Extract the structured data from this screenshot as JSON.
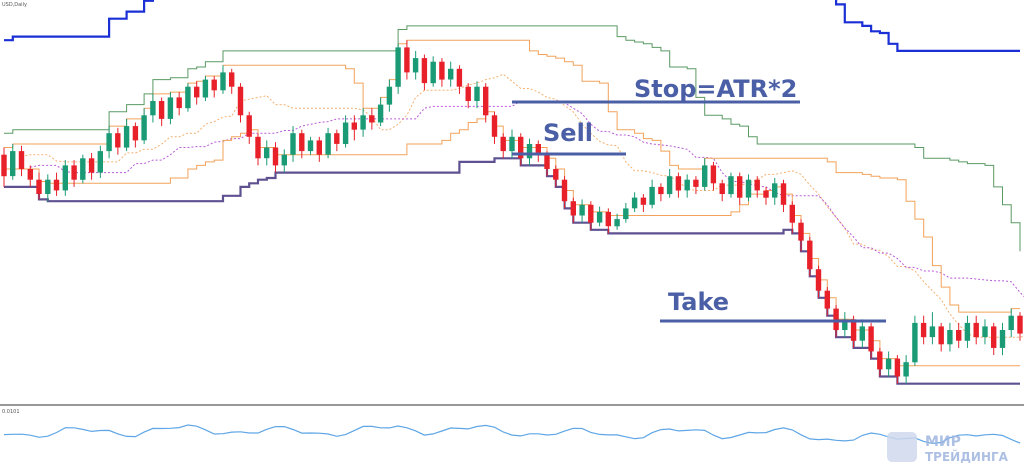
{
  "chart_data": {
    "type": "candlestick",
    "symbol_label": "USD,Daily",
    "oscillator_label": "0.0101",
    "annotations": {
      "stop": "Stop=ATR*2",
      "sell": "Sell",
      "take": "Take"
    },
    "watermark": {
      "line1": "МИР",
      "line2": "ТРЕЙДИНГА"
    },
    "colors": {
      "bull": "#1a9b76",
      "bear": "#e8202a",
      "lower_channel": "#5e5091",
      "upper_channel": "#1a2fd6",
      "orange_channel": "#f2a25a",
      "green_channel": "#5a9a63",
      "purple_dotted": "#b85ad8",
      "orange_dotted": "#f4b070",
      "annotation": "#4b5fa6",
      "oscillator": "#5fa6e6",
      "separator": "#777777"
    },
    "candles": [
      [
        58,
        46,
        40,
        62
      ],
      [
        46,
        60,
        44,
        64
      ],
      [
        60,
        50,
        46,
        63
      ],
      [
        50,
        44,
        40,
        52
      ],
      [
        44,
        36,
        33,
        48
      ],
      [
        36,
        44,
        32,
        47
      ],
      [
        44,
        38,
        35,
        48
      ],
      [
        38,
        52,
        35,
        55
      ],
      [
        52,
        44,
        40,
        55
      ],
      [
        44,
        56,
        42,
        58
      ],
      [
        56,
        48,
        44,
        59
      ],
      [
        48,
        60,
        45,
        63
      ],
      [
        60,
        70,
        56,
        74
      ],
      [
        70,
        62,
        58,
        73
      ],
      [
        62,
        74,
        60,
        78
      ],
      [
        74,
        66,
        62,
        76
      ],
      [
        66,
        80,
        64,
        84
      ],
      [
        80,
        88,
        76,
        92
      ],
      [
        88,
        78,
        74,
        90
      ],
      [
        78,
        90,
        75,
        93
      ],
      [
        90,
        84,
        80,
        93
      ],
      [
        84,
        96,
        82,
        98
      ],
      [
        96,
        90,
        86,
        99
      ],
      [
        90,
        100,
        88,
        102
      ],
      [
        100,
        94,
        90,
        102
      ],
      [
        94,
        104,
        92,
        108
      ],
      [
        104,
        96,
        92,
        106
      ],
      [
        96,
        80,
        76,
        98
      ],
      [
        80,
        68,
        64,
        82
      ],
      [
        68,
        56,
        52,
        70
      ],
      [
        56,
        62,
        52,
        66
      ],
      [
        62,
        52,
        48,
        65
      ],
      [
        52,
        58,
        48,
        61
      ],
      [
        58,
        70,
        54,
        74
      ],
      [
        70,
        60,
        56,
        72
      ],
      [
        60,
        66,
        58,
        68
      ],
      [
        66,
        58,
        54,
        68
      ],
      [
        58,
        70,
        56,
        73
      ],
      [
        70,
        64,
        60,
        72
      ],
      [
        64,
        76,
        62,
        80
      ],
      [
        76,
        72,
        66,
        80
      ],
      [
        72,
        80,
        68,
        84
      ],
      [
        80,
        76,
        72,
        84
      ],
      [
        76,
        86,
        74,
        90
      ],
      [
        86,
        96,
        82,
        100
      ],
      [
        96,
        118,
        92,
        120
      ],
      [
        118,
        104,
        100,
        122
      ],
      [
        104,
        112,
        100,
        116
      ],
      [
        112,
        98,
        94,
        114
      ],
      [
        98,
        110,
        96,
        113
      ],
      [
        110,
        100,
        96,
        112
      ],
      [
        100,
        106,
        96,
        110
      ],
      [
        106,
        96,
        92,
        108
      ],
      [
        96,
        88,
        84,
        98
      ],
      [
        88,
        96,
        84,
        99
      ],
      [
        96,
        80,
        76,
        98
      ],
      [
        80,
        68,
        64,
        82
      ],
      [
        68,
        60,
        56,
        70
      ],
      [
        60,
        68,
        56,
        72
      ],
      [
        68,
        56,
        52,
        70
      ],
      [
        56,
        64,
        52,
        67
      ],
      [
        64,
        58,
        54,
        66
      ],
      [
        58,
        50,
        46,
        60
      ],
      [
        50,
        44,
        40,
        52
      ],
      [
        44,
        32,
        28,
        46
      ],
      [
        32,
        24,
        20,
        34
      ],
      [
        24,
        30,
        20,
        33
      ],
      [
        30,
        20,
        16,
        32
      ],
      [
        20,
        26,
        18,
        29
      ],
      [
        26,
        18,
        14,
        28
      ],
      [
        18,
        22,
        16,
        25
      ],
      [
        22,
        28,
        20,
        31
      ],
      [
        28,
        34,
        26,
        37
      ],
      [
        34,
        30,
        26,
        36
      ],
      [
        30,
        40,
        28,
        44
      ],
      [
        40,
        36,
        32,
        42
      ],
      [
        36,
        46,
        34,
        50
      ],
      [
        46,
        38,
        34,
        48
      ],
      [
        38,
        44,
        34,
        47
      ],
      [
        44,
        40,
        36,
        46
      ],
      [
        40,
        52,
        38,
        56
      ],
      [
        52,
        42,
        38,
        54
      ],
      [
        42,
        36,
        32,
        44
      ],
      [
        36,
        46,
        34,
        48
      ],
      [
        46,
        34,
        30,
        48
      ],
      [
        34,
        44,
        32,
        47
      ],
      [
        44,
        38,
        34,
        46
      ],
      [
        38,
        34,
        30,
        40
      ],
      [
        34,
        42,
        30,
        45
      ],
      [
        42,
        30,
        26,
        44
      ],
      [
        30,
        20,
        14,
        32
      ],
      [
        20,
        10,
        4,
        22
      ],
      [
        10,
        -6,
        -10,
        12
      ],
      [
        -6,
        -18,
        -22,
        -4
      ],
      [
        -18,
        -28,
        -32,
        -16
      ],
      [
        -28,
        -40,
        -44,
        -26
      ],
      [
        -40,
        -34,
        -44,
        -30
      ],
      [
        -34,
        -46,
        -50,
        -32
      ],
      [
        -46,
        -38,
        -50,
        -34
      ],
      [
        -38,
        -52,
        -56,
        -36
      ],
      [
        -52,
        -62,
        -66,
        -50
      ],
      [
        -62,
        -56,
        -66,
        -52
      ],
      [
        -56,
        -66,
        -70,
        -54
      ],
      [
        -66,
        -58,
        -70,
        -54
      ],
      [
        -58,
        -36,
        -60,
        -32
      ],
      [
        -36,
        -44,
        -48,
        -32
      ],
      [
        -44,
        -38,
        -48,
        -30
      ],
      [
        -38,
        -48,
        -52,
        -36
      ],
      [
        -48,
        -40,
        -52,
        -36
      ],
      [
        -40,
        -46,
        -50,
        -36
      ],
      [
        -46,
        -36,
        -50,
        -32
      ],
      [
        -36,
        -44,
        -48,
        -32
      ],
      [
        -44,
        -38,
        -48,
        -34
      ],
      [
        -38,
        -50,
        -54,
        -36
      ],
      [
        -50,
        -40,
        -54,
        -36
      ],
      [
        -40,
        -32,
        -44,
        -28
      ],
      [
        -32,
        -42,
        -46,
        -30
      ]
    ]
  }
}
